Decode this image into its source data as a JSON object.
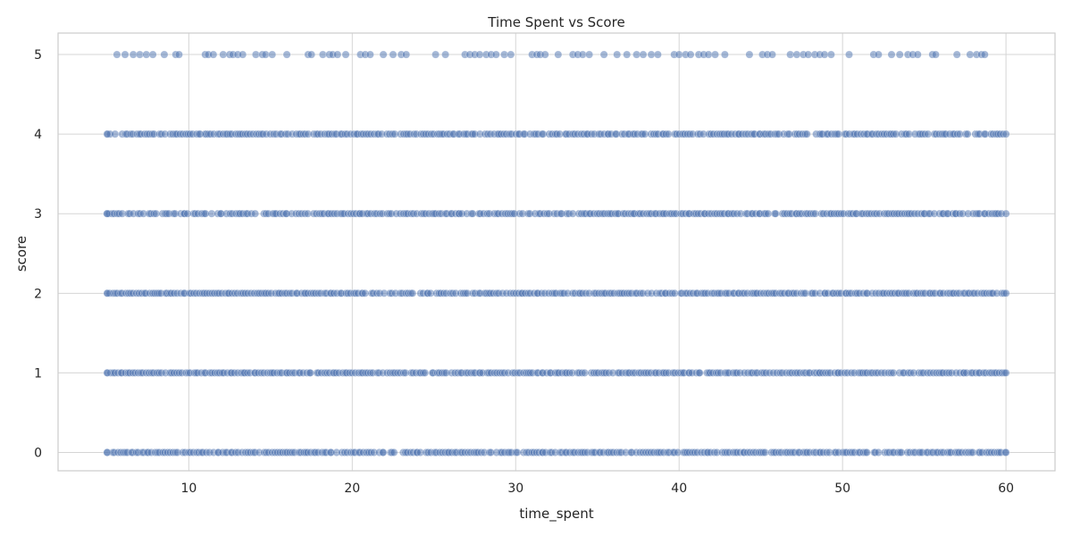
{
  "chart_data": {
    "type": "scatter",
    "title": "Time Spent vs Score",
    "xlabel": "time_spent",
    "ylabel": "score",
    "xlim": [
      2,
      63
    ],
    "ylim": [
      -0.23,
      5.27
    ],
    "xticks": [
      10,
      20,
      30,
      40,
      50,
      60
    ],
    "yticks": [
      0,
      1,
      2,
      3,
      4,
      5
    ],
    "grid": true,
    "point_color": "#4c72b0",
    "point_opacity": 0.5,
    "series": [
      {
        "x_range": [
          5,
          60
        ],
        "y_levels": [
          0,
          1,
          2,
          3,
          4
        ],
        "density": "dense"
      },
      {
        "y": 5,
        "x": [
          5.6,
          6.1,
          6.6,
          7.0,
          7.4,
          7.8,
          8.5,
          9.2,
          9.4,
          11.0,
          11.2,
          11.5,
          12.1,
          12.5,
          12.7,
          13.0,
          13.3,
          14.1,
          14.5,
          14.7,
          15.1,
          16.0,
          17.3,
          17.5,
          18.2,
          18.6,
          18.8,
          19.1,
          19.6,
          20.5,
          20.8,
          21.1,
          21.9,
          22.5,
          23.0,
          23.3,
          25.1,
          25.7,
          26.9,
          27.2,
          27.5,
          27.8,
          28.2,
          28.5,
          28.8,
          29.3,
          29.7,
          31.0,
          31.3,
          31.5,
          31.8,
          32.6,
          33.5,
          33.8,
          34.1,
          34.5,
          35.4,
          36.2,
          36.8,
          37.4,
          37.8,
          38.3,
          38.7,
          39.7,
          40.0,
          40.4,
          40.7,
          41.2,
          41.5,
          41.8,
          42.2,
          42.8,
          44.3,
          45.1,
          45.4,
          45.7,
          46.8,
          47.2,
          47.6,
          47.9,
          48.3,
          48.6,
          48.9,
          49.3,
          50.4,
          51.9,
          52.2,
          53.0,
          53.5,
          54.0,
          54.3,
          54.6,
          55.5,
          55.7,
          57.0,
          57.8,
          58.2,
          58.5,
          58.7
        ]
      }
    ]
  }
}
